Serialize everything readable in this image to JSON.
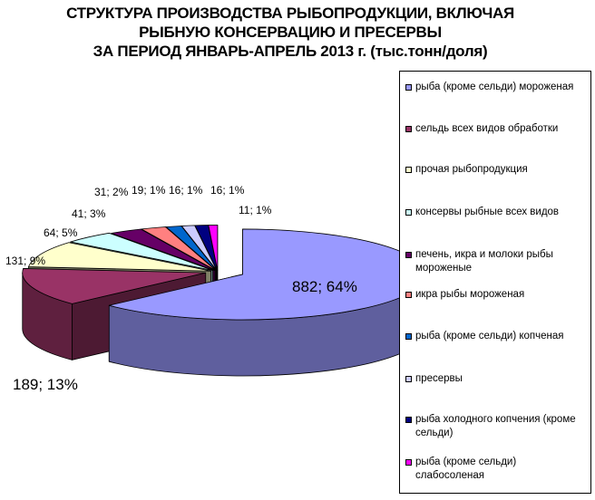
{
  "title_lines": [
    "СТРУКТУРА ПРОИЗВОДСТВА РЫБОПРОДУКЦИИ, ВКЛЮЧАЯ",
    "РЫБНУЮ КОНСЕРВАЦИЮ И ПРЕСЕРВЫ",
    "ЗА ПЕРИОД ЯНВАРЬ-АПРЕЛЬ 2013 г. (тыс.тонн/доля)"
  ],
  "chart_data": {
    "type": "pie",
    "title": "СТРУКТУРА ПРОИЗВОДСТВА РЫБОПРОДУКЦИИ, ВКЛЮЧАЯ РЫБНУЮ КОНСЕРВАЦИЮ И ПРЕСЕРВЫ ЗА ПЕРИОД ЯНВАРЬ-АПРЕЛЬ 2013 г. (тыс.тонн/доля)",
    "legend_position": "right",
    "exploded": true,
    "style": "3d",
    "slices": [
      {
        "name": "рыба (кроме сельди) мороженая",
        "value": 882,
        "share": 64,
        "label": "882; 64%",
        "color": "#9999ff"
      },
      {
        "name": "сельдь всех видов обработки",
        "value": 189,
        "share": 13,
        "label": "189; 13%",
        "color": "#993366"
      },
      {
        "name": "прочая рыбопродукция",
        "value": 131,
        "share": 9,
        "label": "131; 9%",
        "color": "#ffffcc"
      },
      {
        "name": "консервы рыбные всех видов",
        "value": 64,
        "share": 5,
        "label": "64; 5%",
        "color": "#ccffff"
      },
      {
        "name": "печень, икра и молоки рыбы мороженые",
        "value": 41,
        "share": 3,
        "label": "41; 3%",
        "color": "#660066"
      },
      {
        "name": "икра рыбы мороженая",
        "value": 31,
        "share": 2,
        "label": "31; 2%",
        "color": "#ff8080"
      },
      {
        "name": "рыба (кроме сельди) копченая",
        "value": 19,
        "share": 1,
        "label": "19; 1%",
        "color": "#0066cc"
      },
      {
        "name": "пресервы",
        "value": 16,
        "share": 1,
        "label": "16; 1%",
        "color": "#ccccff"
      },
      {
        "name": "рыба холодного копчения (кроме сельди)",
        "value": 16,
        "share": 1,
        "label": "16; 1%",
        "color": "#000080"
      },
      {
        "name": "рыба (кроме сельди) слабосоленая",
        "value": 11,
        "share": 1,
        "label": "11; 1%",
        "color": "#ff00ff"
      }
    ]
  }
}
